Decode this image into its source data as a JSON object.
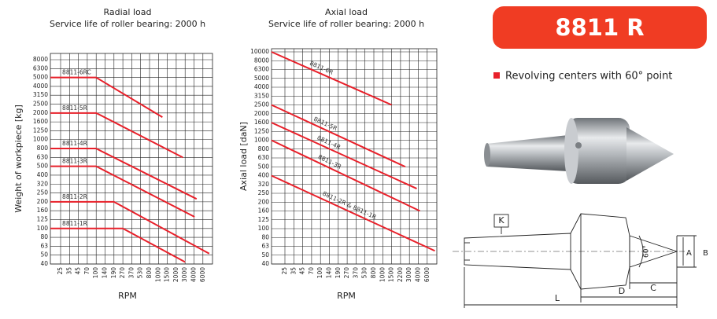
{
  "radial_chart": {
    "type": "line",
    "title": "Radial load",
    "subtitle": "Service life of roller bearing: 2000 h",
    "y_label": "Weight of workpiece [kg]",
    "x_label": "RPM",
    "color": "#e8202a",
    "xticks": [
      25,
      35,
      45,
      70,
      100,
      140,
      190,
      270,
      370,
      530,
      800,
      1000,
      1500,
      2000,
      3000,
      4000,
      6000
    ],
    "yticks": [
      8000,
      6300,
      5000,
      4000,
      3150,
      2500,
      2000,
      1600,
      1250,
      1000,
      800,
      630,
      500,
      400,
      320,
      250,
      200,
      160,
      125,
      100,
      80,
      63,
      50,
      40
    ],
    "series": [
      {
        "name": "8811-6RC",
        "x": [
          17,
          100,
          1200
        ],
        "values": [
          5000,
          5000,
          1800
        ]
      },
      {
        "name": "8811-5R",
        "x": [
          17,
          100,
          2700
        ],
        "values": [
          2000,
          2000,
          630
        ]
      },
      {
        "name": "8811-4R",
        "x": [
          17,
          100,
          4500
        ],
        "values": [
          800,
          800,
          215
        ]
      },
      {
        "name": "8811-3R",
        "x": [
          17,
          100,
          4100
        ],
        "values": [
          500,
          500,
          135
        ]
      },
      {
        "name": "8811-2R",
        "x": [
          17,
          190,
          8000
        ],
        "values": [
          200,
          200,
          52
        ]
      },
      {
        "name": "8811-1R",
        "x": [
          17,
          270,
          3000
        ],
        "values": [
          100,
          100,
          42
        ]
      }
    ]
  },
  "axial_chart": {
    "type": "line",
    "title": "Axial load",
    "subtitle": "Service life of roller bearing: 2000 h",
    "y_label": "Axial load [daN]",
    "x_label": "RPM",
    "color": "#e8202a",
    "xticks": [
      25,
      35,
      45,
      70,
      100,
      140,
      190,
      270,
      370,
      530,
      800,
      1000,
      1500,
      2200,
      3000,
      4000,
      6000
    ],
    "yticks": [
      10000,
      8000,
      6300,
      5000,
      4000,
      3150,
      2500,
      2000,
      1600,
      1250,
      1000,
      800,
      630,
      500,
      400,
      320,
      250,
      200,
      160,
      125,
      100,
      80,
      63,
      50,
      40
    ],
    "series": [
      {
        "name": "8811-6R",
        "x": [
          15,
          1500
        ],
        "values": [
          10000,
          2500
        ]
      },
      {
        "name": "8811-5R",
        "x": [
          15,
          2600
        ],
        "values": [
          2500,
          500
        ]
      },
      {
        "name": "8811-4R",
        "x": [
          15,
          3800
        ],
        "values": [
          1600,
          285
        ]
      },
      {
        "name": "8811-3R",
        "x": [
          15,
          4300
        ],
        "values": [
          1000,
          160
        ]
      },
      {
        "name": "8811-2R & 8811-1R",
        "x": [
          15,
          8500
        ],
        "values": [
          400,
          56
        ]
      }
    ]
  },
  "product": {
    "title": "8811 R",
    "subtitle": "Revolving centers with 60° point"
  },
  "drawing": {
    "k": "K",
    "l": "L",
    "d": "D",
    "c": "C",
    "a": "A",
    "b": "B",
    "angle": "60°"
  }
}
